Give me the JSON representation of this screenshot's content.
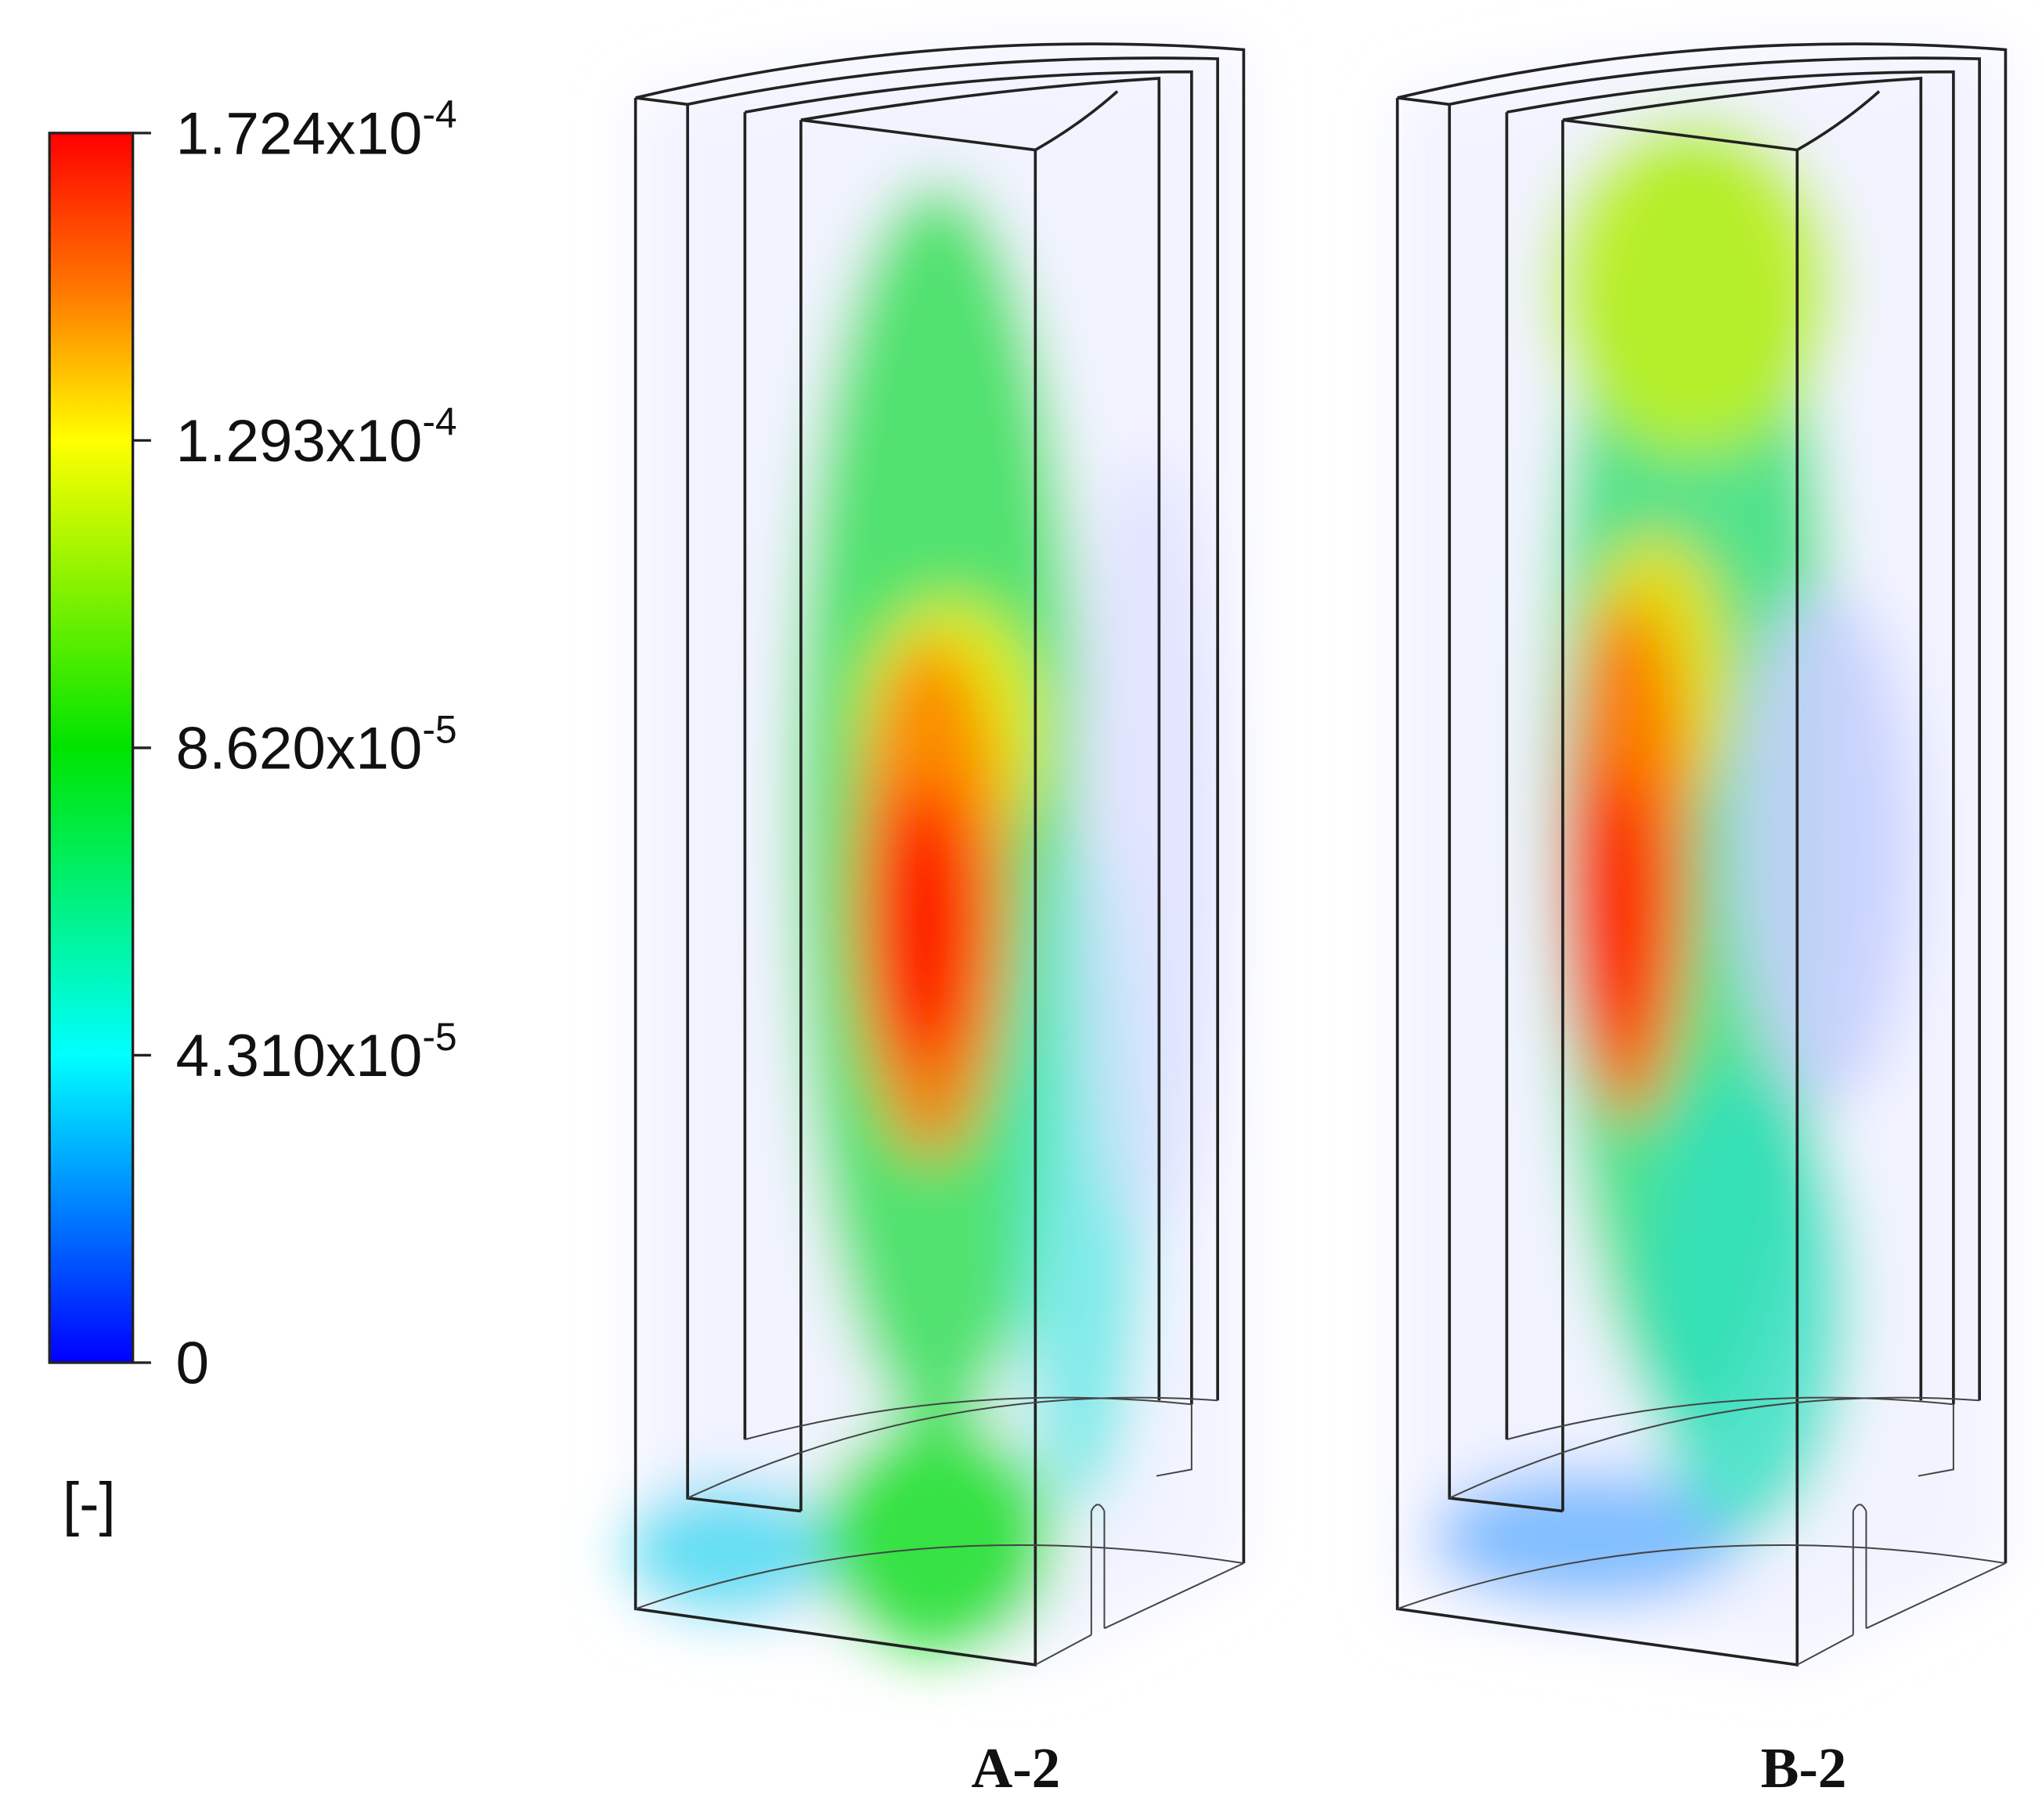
{
  "colorbar": {
    "ticks": [
      {
        "base": "1.724x10",
        "exponent": "-4"
      },
      {
        "base": "1.293x10",
        "exponent": "-4"
      },
      {
        "base": "8.620x10",
        "exponent": "-5"
      },
      {
        "base": "4.310x10",
        "exponent": "-5"
      },
      {
        "base": "0"
      }
    ],
    "unit": "[-]"
  },
  "panels": [
    {
      "label": "A-2"
    },
    {
      "label": "B-2"
    }
  ]
}
